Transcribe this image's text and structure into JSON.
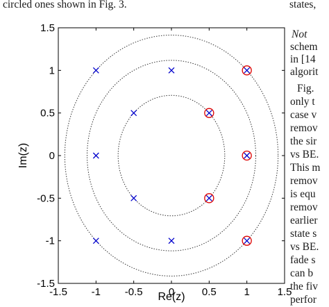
{
  "caption_tail": "circled ones shown in Fig. 3.",
  "side_column": [
    {
      "text": "states,",
      "italic": false
    },
    {
      "text": "Not",
      "italic": true
    },
    {
      "text": "schem",
      "italic": false
    },
    {
      "text": "in [14",
      "italic": false
    },
    {
      "text": "algorit",
      "italic": false
    },
    {
      "text": "Fig.",
      "italic": false
    },
    {
      "text": "only t",
      "italic": false
    },
    {
      "text": "case v",
      "italic": false
    },
    {
      "text": "remov",
      "italic": false
    },
    {
      "text": "the sir",
      "italic": false
    },
    {
      "text": "vs BE.",
      "italic": false
    },
    {
      "text": "This m",
      "italic": false
    },
    {
      "text": "remov",
      "italic": false
    },
    {
      "text": "is equ",
      "italic": false
    },
    {
      "text": "remov",
      "italic": false
    },
    {
      "text": "earlier",
      "italic": false
    },
    {
      "text": "state s",
      "italic": false
    },
    {
      "text": "vs BE.",
      "italic": false
    },
    {
      "text": "fade s",
      "italic": false
    },
    {
      "text": "can b",
      "italic": false
    },
    {
      "text": "the fiv",
      "italic": false
    },
    {
      "text": "perfor",
      "italic": false
    }
  ],
  "chart_data": {
    "type": "scatter",
    "xlabel": "Re(z)",
    "ylabel": "Im(z)",
    "xlim": [
      -1.5,
      1.5
    ],
    "ylim": [
      -1.5,
      1.5
    ],
    "xticks": [
      "-1.5",
      "-1",
      "-0.5",
      "0",
      "0.5",
      "1",
      "1.5"
    ],
    "yticks": [
      "1.5",
      "1",
      "0.5",
      "0",
      "-0.5",
      "-1",
      "-1.5"
    ],
    "grid": false,
    "circles": [
      {
        "radius": 0.707,
        "style": "dotted"
      },
      {
        "radius": 1.118,
        "style": "dotted"
      },
      {
        "radius": 1.414,
        "style": "dotted"
      }
    ],
    "series": [
      {
        "marker": "x",
        "color": "#0000cc",
        "points": [
          [
            -1,
            1
          ],
          [
            0,
            1
          ],
          [
            1,
            1
          ],
          [
            -0.5,
            0.5
          ],
          [
            0.5,
            0.5
          ],
          [
            -1,
            0
          ],
          [
            1,
            0
          ],
          [
            -0.5,
            -0.5
          ],
          [
            0.5,
            -0.5
          ],
          [
            -1,
            -1
          ],
          [
            0,
            -1
          ],
          [
            1,
            -1
          ]
        ]
      },
      {
        "marker": "circle",
        "color": "#dd0000",
        "points": [
          [
            1,
            1
          ],
          [
            0.5,
            0.5
          ],
          [
            1,
            0
          ],
          [
            0.5,
            -0.5
          ],
          [
            1,
            -1
          ]
        ]
      }
    ]
  }
}
